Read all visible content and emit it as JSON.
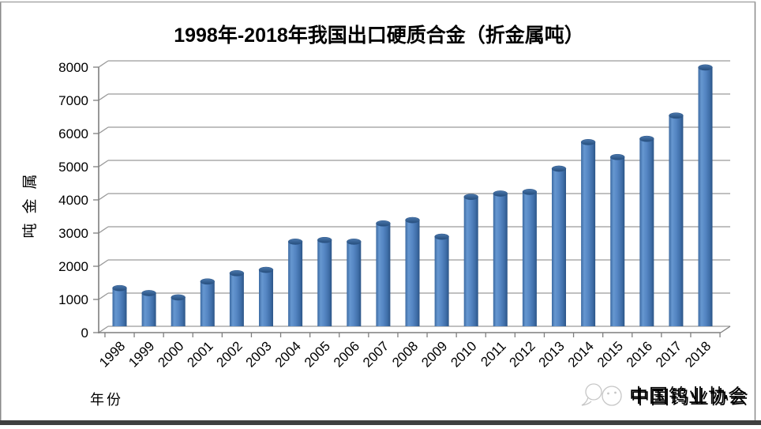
{
  "frame": {
    "background": "#ffffff",
    "border_color": "#8a8a8a",
    "bottom_bar_color": "#3f3f3f"
  },
  "watermark": {
    "text": "中国钨业协会",
    "color": "#c4c4c4",
    "logo_icon": "mascot-face-with-speech-bubble"
  },
  "chart_data": {
    "type": "bar",
    "style": "3d-cylinder",
    "title": "1998年-2018年我国出口硬质合金（折金属吨）",
    "xlabel": "年份",
    "ylabel": "吨金属",
    "categories": [
      "1998",
      "1999",
      "2000",
      "2001",
      "2002",
      "2003",
      "2004",
      "2005",
      "2006",
      "2007",
      "2008",
      "2009",
      "2010",
      "2011",
      "2012",
      "2013",
      "2014",
      "2015",
      "2016",
      "2017",
      "2018"
    ],
    "values": [
      1150,
      1000,
      870,
      1350,
      1600,
      1700,
      2550,
      2600,
      2550,
      3100,
      3200,
      2700,
      3900,
      4000,
      4050,
      4750,
      5550,
      5100,
      5650,
      6350,
      7800
    ],
    "ylim": [
      0,
      8000
    ],
    "yticks": [
      0,
      1000,
      2000,
      3000,
      4000,
      5000,
      6000,
      7000,
      8000
    ],
    "grid": true,
    "legend": false,
    "bar_color": "#4f81bd",
    "bar_edge_color": "#2c5587",
    "gridline_color": "#9a9a9a",
    "axis_color": "#7f7f7f"
  }
}
